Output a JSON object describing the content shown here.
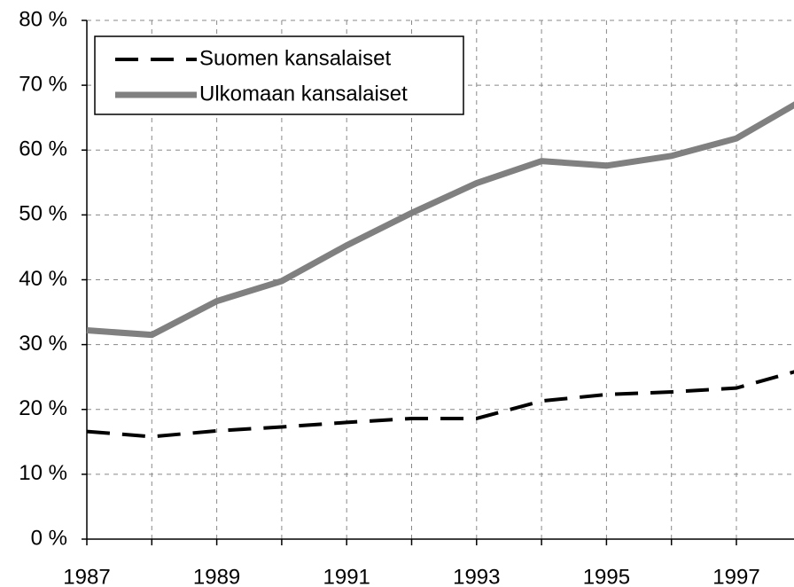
{
  "chart_data": {
    "type": "line",
    "categories": [
      "1987",
      null,
      "1989",
      null,
      "1991",
      null,
      "1993",
      null,
      "1995",
      null,
      "1997",
      null
    ],
    "series": [
      {
        "name": "Suomen kansalaiset",
        "color": "#000000",
        "line_style": "dashed",
        "values": [
          16.6,
          15.8,
          16.7,
          17.3,
          18.0,
          18.6,
          18.6,
          21.3,
          22.3,
          22.7,
          23.3,
          26.1
        ]
      },
      {
        "name": "Ulkomaan kansalaiset",
        "color": "#808080",
        "line_style": "solid",
        "values": [
          32.2,
          31.5,
          36.7,
          39.8,
          45.3,
          50.3,
          54.9,
          58.3,
          57.6,
          59.1,
          61.8,
          67.6
        ]
      }
    ],
    "ylim": [
      0,
      80
    ],
    "yticks": [
      {
        "value": 0,
        "label": "0 %"
      },
      {
        "value": 10,
        "label": "10 %"
      },
      {
        "value": 20,
        "label": "20 %"
      },
      {
        "value": 30,
        "label": "30 %"
      },
      {
        "value": 40,
        "label": "40 %"
      },
      {
        "value": 50,
        "label": "50 %"
      },
      {
        "value": 60,
        "label": "60 %"
      },
      {
        "value": 70,
        "label": "70 %"
      },
      {
        "value": 80,
        "label": "80 %"
      }
    ],
    "grid": true,
    "legend": "upper left"
  }
}
